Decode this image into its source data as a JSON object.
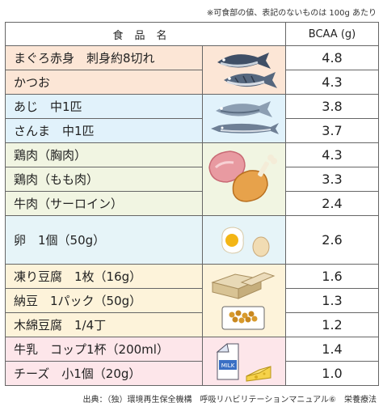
{
  "note": "※可食部の値、表記のないものは 100g あたり",
  "headers": {
    "food": "食品名",
    "value": "BCAA (g)"
  },
  "rows": [
    {
      "name": "まぐろ赤身　刺身約8切れ",
      "value": "4.8"
    },
    {
      "name": "かつお",
      "value": "4.3"
    },
    {
      "name": "あじ　中1匹",
      "value": "3.8"
    },
    {
      "name": "さんま　中1匹",
      "value": "3.7"
    },
    {
      "name": "鶏肉（胸肉）",
      "value": "4.3"
    },
    {
      "name": "鶏肉（もも肉）",
      "value": "3.3"
    },
    {
      "name": "牛肉（サーロイン）",
      "value": "2.4"
    },
    {
      "name": "卵　1個（50g）",
      "value": "2.6"
    },
    {
      "name": "凍り豆腐　1枚（16g）",
      "value": "1.6"
    },
    {
      "name": "納豆　1パック（50g）",
      "value": "1.3"
    },
    {
      "name": "木綿豆腐　1/4丁",
      "value": "1.2"
    },
    {
      "name": "牛乳　コップ1杯（200ml）",
      "value": "1.4"
    },
    {
      "name": "チーズ　小1個（20g）",
      "value": "1.0"
    }
  ],
  "milk_label": "MILK",
  "source": "出典：（独）環境再生保全機構　呼吸リハビリテーションマニュアル⑥　栄養療法"
}
